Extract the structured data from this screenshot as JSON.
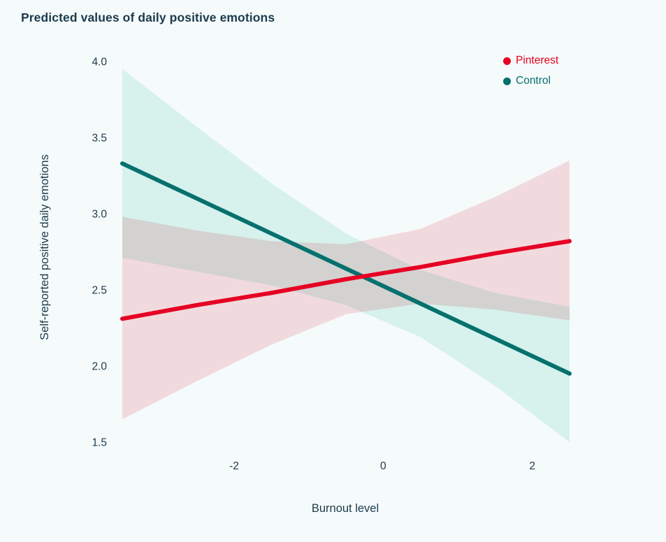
{
  "colors": {
    "background": "#f5fafa",
    "text": "#1b3b4d"
  },
  "legend": [
    {
      "label": "Pinterest",
      "color": "#e60023"
    },
    {
      "label": "Control",
      "color": "#05716e"
    }
  ],
  "chart_data": {
    "type": "line",
    "title": "Predicted values of daily positive emotions",
    "xlabel": "Burnout level",
    "ylabel": "Self-reported positive daily emotions",
    "xlim": [
      -3.5,
      2.5
    ],
    "ylim": [
      1.5,
      4.0
    ],
    "grid": false,
    "legend_position": "top-right",
    "xticks": [
      {
        "value": -2,
        "label": "-2"
      },
      {
        "value": 0,
        "label": "0"
      },
      {
        "value": 2,
        "label": "2"
      }
    ],
    "yticks": [
      {
        "value": 4.0,
        "label": "4.0"
      },
      {
        "value": 3.5,
        "label": "3.5"
      },
      {
        "value": 3.0,
        "label": "3.0"
      },
      {
        "value": 2.5,
        "label": "2.5"
      },
      {
        "value": 2.0,
        "label": "2.0"
      },
      {
        "value": 1.5,
        "label": "1.5"
      }
    ],
    "series": [
      {
        "name": "Pinterest",
        "color": "#e60023",
        "band_color": "#fbdfe2",
        "x": [
          -3.5,
          -2.5,
          -1.5,
          -0.5,
          0.5,
          1.5,
          2.5
        ],
        "y": [
          2.31,
          2.4,
          2.48,
          2.57,
          2.65,
          2.74,
          2.82
        ],
        "band_upper": [
          2.98,
          2.89,
          2.82,
          2.8,
          2.9,
          3.11,
          3.35
        ],
        "band_lower": [
          1.65,
          1.9,
          2.14,
          2.34,
          2.41,
          2.37,
          2.3
        ]
      },
      {
        "name": "Control",
        "color": "#05716e",
        "band_color": "#e0f6f1",
        "x": [
          -3.5,
          -2.5,
          -1.5,
          -0.5,
          0.5,
          1.5,
          2.5
        ],
        "y": [
          3.33,
          3.1,
          2.87,
          2.64,
          2.41,
          2.18,
          1.95
        ],
        "band_upper": [
          3.95,
          3.57,
          3.2,
          2.87,
          2.63,
          2.48,
          2.39
        ],
        "band_lower": [
          2.71,
          2.62,
          2.53,
          2.4,
          2.19,
          1.87,
          1.5
        ]
      }
    ]
  }
}
